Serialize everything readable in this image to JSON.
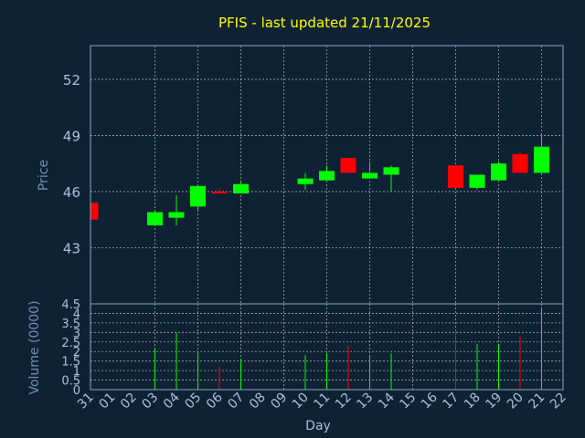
{
  "chart_data": {
    "type": "candlestick",
    "title": "PFIS - last updated 21/11/2025",
    "colors": {
      "background": "#0f2234",
      "up": "#00ff00",
      "down": "#ff0000",
      "title": "#ffff00",
      "axis_text": "#6f8fb6",
      "tick_text": "#a9c0dc",
      "grid": "#c8d2dc",
      "frame": "#8aa4c2"
    },
    "price_panel": {
      "ylabel": "Price",
      "ylim": [
        40.0,
        53.8
      ],
      "yticks": [
        "43",
        "46",
        "49",
        "52"
      ],
      "grid": true
    },
    "volume_panel": {
      "ylabel": "Volume (0000)",
      "ylim": [
        0,
        4.5
      ],
      "yticks": [
        "0",
        "0.5",
        "1",
        "1.5",
        "2",
        "2.5",
        "3",
        "3.5",
        "4",
        "4.5"
      ],
      "grid": true
    },
    "xlabel": "Day",
    "x_ticks": [
      "31",
      "01",
      "02",
      "03",
      "04",
      "05",
      "06",
      "07",
      "08",
      "09",
      "10",
      "11",
      "12",
      "13",
      "14",
      "15",
      "16",
      "17",
      "18",
      "19",
      "20",
      "21",
      "22"
    ],
    "x_gridlines": [
      "03",
      "05",
      "07",
      "09",
      "11",
      "13",
      "15",
      "17",
      "19",
      "21"
    ],
    "candles": [
      {
        "day": "31",
        "open": 45.4,
        "high": 45.4,
        "low": 44.5,
        "close": 44.5,
        "volume": 0
      },
      {
        "day": "03",
        "open": 44.2,
        "high": 45.0,
        "low": 44.2,
        "close": 44.9,
        "volume": 2.2
      },
      {
        "day": "04",
        "open": 44.6,
        "high": 45.8,
        "low": 44.2,
        "close": 44.9,
        "volume": 3.0
      },
      {
        "day": "05",
        "open": 45.2,
        "high": 46.3,
        "low": 45.0,
        "close": 46.3,
        "volume": 2.0
      },
      {
        "day": "06",
        "open": 46.0,
        "high": 46.1,
        "low": 45.9,
        "close": 45.95,
        "volume": 1.2
      },
      {
        "day": "07",
        "open": 45.9,
        "high": 46.6,
        "low": 45.9,
        "close": 46.4,
        "volume": 1.6
      },
      {
        "day": "10",
        "open": 46.4,
        "high": 47.0,
        "low": 46.1,
        "close": 46.7,
        "volume": 1.8
      },
      {
        "day": "11",
        "open": 46.6,
        "high": 47.4,
        "low": 46.6,
        "close": 47.1,
        "volume": 1.9
      },
      {
        "day": "12",
        "open": 47.8,
        "high": 47.8,
        "low": 47.0,
        "close": 47.0,
        "volume": 2.3
      },
      {
        "day": "13",
        "open": 46.7,
        "high": 47.6,
        "low": 46.7,
        "close": 47.0,
        "volume": 1.8
      },
      {
        "day": "14",
        "open": 46.9,
        "high": 47.4,
        "low": 46.0,
        "close": 47.3,
        "volume": 1.9
      },
      {
        "day": "17",
        "open": 47.4,
        "high": 47.4,
        "low": 46.2,
        "close": 46.2,
        "volume": 3.1
      },
      {
        "day": "18",
        "open": 46.2,
        "high": 46.9,
        "low": 46.1,
        "close": 46.9,
        "volume": 2.4
      },
      {
        "day": "19",
        "open": 46.6,
        "high": 47.6,
        "low": 46.6,
        "close": 47.5,
        "volume": 2.4
      },
      {
        "day": "20",
        "open": 48.0,
        "high": 48.1,
        "low": 47.0,
        "close": 47.0,
        "volume": 2.8
      },
      {
        "day": "21",
        "open": 47.0,
        "high": 49.1,
        "low": 47.0,
        "close": 48.4,
        "volume": 4.3
      }
    ]
  }
}
